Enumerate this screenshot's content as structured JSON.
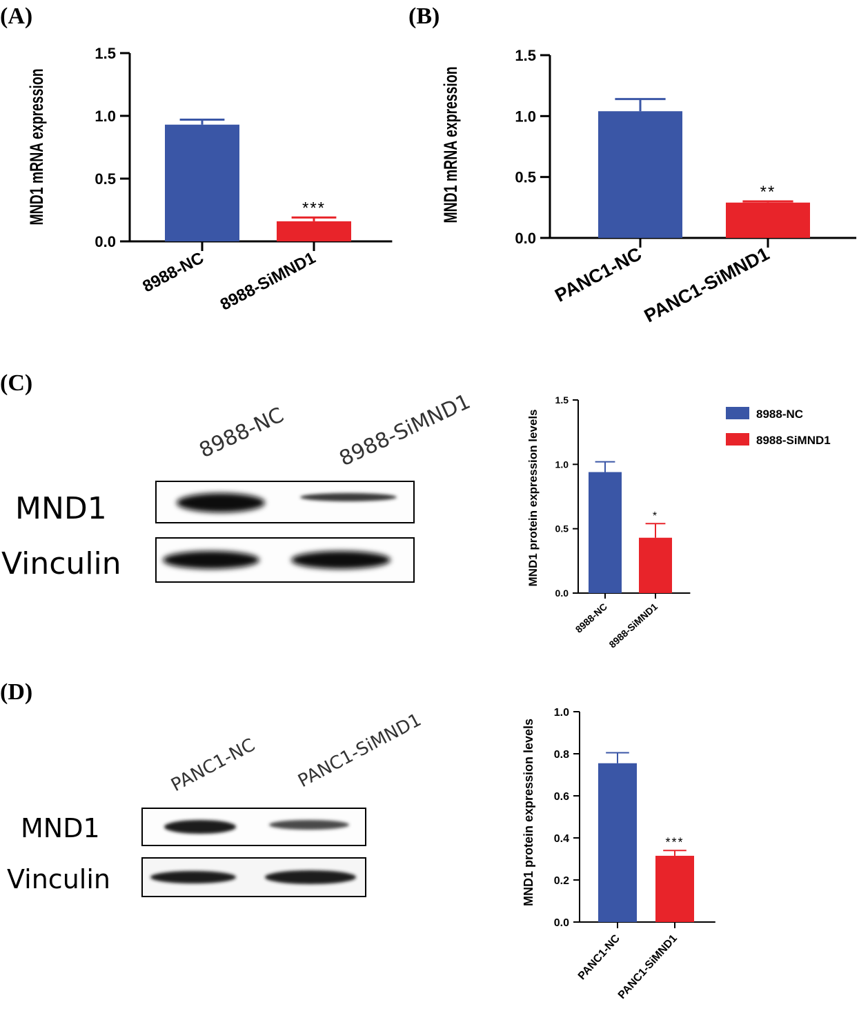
{
  "colors": {
    "nc": "#3a56a6",
    "si": "#e8242a",
    "axis": "#000000",
    "error": "#3a56a6"
  },
  "panels": [
    {
      "label": "(A)"
    },
    {
      "label": "(B)"
    },
    {
      "label": "(C)"
    },
    {
      "label": "(D)"
    }
  ],
  "chart_data": [
    {
      "panel": "A",
      "type": "bar",
      "ylabel": "MND1 mRNA expression",
      "ylim": [
        0,
        1.5
      ],
      "yticks": [
        "0.0",
        "0.5",
        "1.0",
        "1.5"
      ],
      "categories": [
        "8988-NC",
        "8988-SiMND1"
      ],
      "values": [
        0.93,
        0.16
      ],
      "errors": [
        0.04,
        0.03
      ],
      "significance": [
        "",
        "***"
      ]
    },
    {
      "panel": "B",
      "type": "bar",
      "ylabel": "MND1 mRNA expression",
      "ylim": [
        0,
        1.5
      ],
      "yticks": [
        "0.0",
        "0.5",
        "1.0",
        "1.5"
      ],
      "categories": [
        "PANC1-NC",
        "PANC1-SiMND1"
      ],
      "values": [
        1.04,
        0.29
      ],
      "errors": [
        0.1,
        0.01
      ],
      "significance": [
        "",
        "**"
      ]
    },
    {
      "panel": "C",
      "type": "bar",
      "ylabel": "MND1 protein expression levels",
      "ylim": [
        0,
        1.5
      ],
      "yticks": [
        "0.0",
        "0.5",
        "1.0",
        "1.5"
      ],
      "categories": [
        "8988-NC",
        "8988-SiMND1"
      ],
      "values": [
        0.94,
        0.43
      ],
      "errors": [
        0.08,
        0.11
      ],
      "significance": [
        "",
        "*"
      ],
      "legend": [
        "8988-NC",
        "8988-SiMND1"
      ]
    },
    {
      "panel": "D",
      "type": "bar",
      "ylabel": "MND1 protein expression levels",
      "ylim": [
        0,
        1.0
      ],
      "yticks": [
        "0.0",
        "0.2",
        "0.4",
        "0.6",
        "0.8",
        "1.0"
      ],
      "categories": [
        "PANC1-NC",
        "PANC1-SiMND1"
      ],
      "values": [
        0.755,
        0.315
      ],
      "errors": [
        0.05,
        0.025
      ],
      "significance": [
        "",
        "***"
      ]
    }
  ],
  "blots": [
    {
      "panel": "C",
      "lanes": [
        "8988-NC",
        "8988-SiMND1"
      ],
      "rows": [
        "MND1",
        "Vinculin"
      ],
      "band_intensity": [
        [
          1.0,
          0.35
        ],
        [
          0.95,
          0.95
        ]
      ]
    },
    {
      "panel": "D",
      "lanes": [
        "PANC1-NC",
        "PANC1-SiMND1"
      ],
      "rows": [
        "MND1",
        "Vinculin"
      ],
      "band_intensity": [
        [
          0.8,
          0.45
        ],
        [
          0.85,
          0.85
        ]
      ]
    }
  ]
}
